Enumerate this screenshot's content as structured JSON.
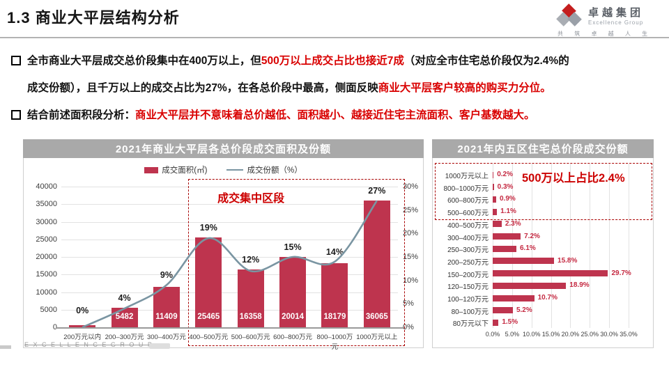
{
  "slide": {
    "title": "1.3 商业大平层结构分析",
    "logo": {
      "name_cn": "卓越集团",
      "name_en": "Excellence Group",
      "tagline": "共 筑 卓 越 人 生"
    },
    "watermark": "E X C E L L E N C E   G R O U P"
  },
  "bullets": [
    {
      "segments": [
        {
          "text": "全市商业大平层成交总价段集中在400万以上，但",
          "em": false
        },
        {
          "text": "500万以上成交占比也接近7成",
          "em": true
        },
        {
          "text": "（对应全市住宅总价段仅为2.4%的\n成交份额），且千万以上的成交占比为27%，在各总价段中最高，侧面反映",
          "em": false
        },
        {
          "text": "商业大平层客户较高的购买力分位。",
          "em": true
        }
      ]
    },
    {
      "segments": [
        {
          "text": "结合前述面积段分析：",
          "em": false
        },
        {
          "text": "商业大平层并不意味着总价越低、面积越小、越接近住宅主流面积、客户基数越大。",
          "em": true
        }
      ]
    }
  ],
  "colors": {
    "bar": "#be344e",
    "line": "#7a95a2",
    "em_red": "#d90000",
    "annotation_red": "#cc0000",
    "dashed_border": "#a80000",
    "header_bg": "#a9a9a9"
  },
  "chart_data": [
    {
      "type": "bar",
      "title": "2021年商业大平层各总价段成交面积及份额",
      "legend": [
        {
          "label": "成交面积(㎡)",
          "kind": "bar"
        },
        {
          "label": "成交份额（%）",
          "kind": "line"
        }
      ],
      "categories": [
        "200万元以内",
        "200–300万元",
        "300–400万元",
        "400–500万元",
        "500–600万元",
        "600–800万元",
        "800–1000万元",
        "1000万元以上"
      ],
      "series": [
        {
          "name": "成交面积(㎡)",
          "type": "bar",
          "axis": "left",
          "values": [
            500,
            5482,
            11409,
            25465,
            16358,
            20014,
            18179,
            36065
          ],
          "labels": [
            "",
            "5482",
            "11409",
            "25465",
            "16358",
            "20014",
            "18179",
            "36065"
          ]
        },
        {
          "name": "成交份额（%）",
          "type": "line",
          "axis": "right",
          "values": [
            0,
            4,
            9,
            19,
            12,
            15,
            14,
            27
          ],
          "labels": [
            "0%",
            "4%",
            "9%",
            "19%",
            "12%",
            "15%",
            "14%",
            "27%"
          ]
        }
      ],
      "y_left": {
        "min": 0,
        "max": 40000,
        "step": 5000,
        "ticks": [
          "0",
          "5000",
          "10000",
          "15000",
          "20000",
          "25000",
          "30000",
          "35000",
          "40000"
        ]
      },
      "y_right": {
        "min": 0,
        "max": 30,
        "step": 5,
        "ticks": [
          "0%",
          "5%",
          "10%",
          "15%",
          "20%",
          "25%",
          "30%"
        ]
      },
      "grid": true,
      "annotation": {
        "label": "成交集中区段",
        "from_category": "400–500万元",
        "to_category": "1000万元以上"
      }
    },
    {
      "type": "bar",
      "orientation": "horizontal",
      "title": "2021年内五区住宅总价段成交份额",
      "categories": [
        "1000万元以上",
        "800–1000万元",
        "600–800万元",
        "500–600万元",
        "400–500万元",
        "300–400万元",
        "250–300万元",
        "200–250万元",
        "150–200万元",
        "120–150万元",
        "100–120万元",
        "80–100万元",
        "80万元以下"
      ],
      "values": [
        0.2,
        0.3,
        0.9,
        1.1,
        2.3,
        7.2,
        6.1,
        15.8,
        29.7,
        18.9,
        10.7,
        5.2,
        1.5
      ],
      "labels": [
        "0.2%",
        "0.3%",
        "0.9%",
        "1.1%",
        "2.3%",
        "7.2%",
        "6.1%",
        "15.8%",
        "29.7%",
        "18.9%",
        "10.7%",
        "5.2%",
        "1.5%"
      ],
      "x_axis": {
        "min": 0,
        "max": 35,
        "step": 5,
        "ticks": [
          "0.0%",
          "5.0%",
          "10.0%",
          "15.0%",
          "20.0%",
          "25.0%",
          "30.0%",
          "35.0%"
        ]
      },
      "grid": true,
      "annotation": {
        "label": "500万以上占比2.4%",
        "rows_boxed": 4
      }
    }
  ]
}
